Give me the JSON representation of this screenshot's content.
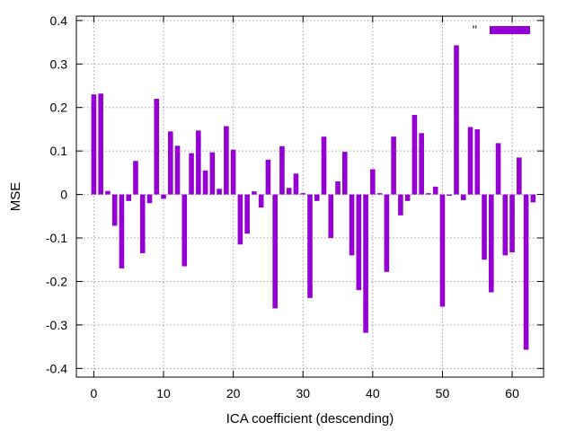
{
  "chart_data": {
    "type": "bar",
    "xlabel": "ICA coefficient (descending)",
    "ylabel": "MSE",
    "xlim": [
      -2.5,
      64.5
    ],
    "ylim": [
      -0.42,
      0.41
    ],
    "xticks": [
      0,
      10,
      20,
      30,
      40,
      50,
      60
    ],
    "xtick_labels": [
      "0",
      "10",
      "20",
      "30",
      "40",
      "50",
      "60"
    ],
    "yticks": [
      -0.4,
      -0.3,
      -0.2,
      -0.1,
      0,
      0.1,
      0.2,
      0.3,
      0.4
    ],
    "ytick_labels": [
      "-0.4",
      "-0.3",
      "-0.2",
      "-0.1",
      "0",
      "0.1",
      "0.2",
      "0.3",
      "0.4"
    ],
    "grid": true,
    "legend_position": "top-right",
    "color": "#9400d3",
    "series": [
      {
        "name": "''",
        "x": [
          0,
          1,
          2,
          3,
          4,
          5,
          6,
          7,
          8,
          9,
          10,
          11,
          12,
          13,
          14,
          15,
          16,
          17,
          18,
          19,
          20,
          21,
          22,
          23,
          24,
          25,
          26,
          27,
          28,
          29,
          30,
          31,
          32,
          33,
          34,
          35,
          36,
          37,
          38,
          39,
          40,
          41,
          42,
          43,
          44,
          45,
          46,
          47,
          48,
          49,
          50,
          51,
          52,
          53,
          54,
          55,
          56,
          57,
          58,
          59,
          60,
          61,
          62,
          63
        ],
        "values": [
          0.23,
          0.232,
          0.008,
          -0.072,
          -0.17,
          -0.015,
          0.077,
          -0.135,
          -0.02,
          0.22,
          -0.01,
          0.145,
          0.112,
          -0.165,
          0.095,
          0.147,
          0.055,
          0.097,
          0.013,
          0.157,
          0.103,
          -0.115,
          -0.09,
          0.007,
          -0.03,
          0.08,
          -0.262,
          0.111,
          0.015,
          0.048,
          0.003,
          -0.238,
          -0.015,
          0.133,
          -0.1,
          0.03,
          0.098,
          -0.14,
          -0.22,
          -0.318,
          0.058,
          0.003,
          -0.178,
          0.133,
          -0.048,
          -0.015,
          0.183,
          0.141,
          0.003,
          0.018,
          -0.258,
          -0.003,
          0.343,
          -0.013,
          0.155,
          0.15,
          -0.15,
          -0.225,
          0.118,
          -0.14,
          -0.133,
          0.085,
          -0.357,
          -0.018
        ]
      }
    ]
  }
}
